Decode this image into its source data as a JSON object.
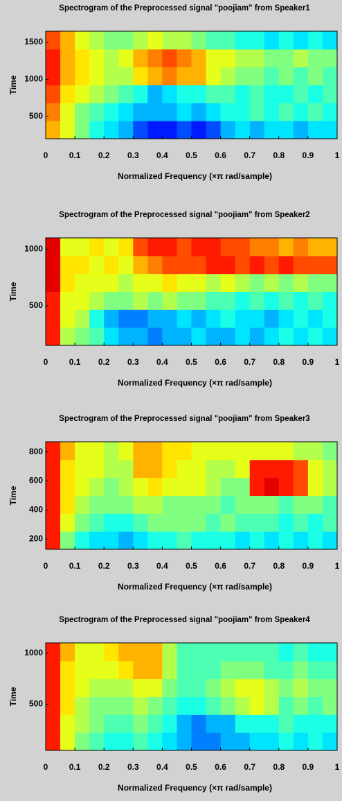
{
  "chart_data": [
    {
      "type": "heatmap",
      "title": "Spectrogram of the Preprocessed signal \"poojiam\" from Speaker1",
      "xlabel": "Normalized Frequency  (×π rad/sample)",
      "ylabel": "Time",
      "xlim": [
        0,
        1
      ],
      "xticks": [
        0,
        0.1,
        0.2,
        0.3,
        0.4,
        0.5,
        0.6,
        0.7,
        0.8,
        0.9,
        1
      ],
      "ylim": [
        200,
        1650
      ],
      "yticks": [
        500,
        1000,
        1500
      ],
      "colormap": "jet",
      "clim": [
        0,
        1
      ],
      "z": [
        [
          0.7,
          0.6,
          0.5,
          0.4,
          0.35,
          0.3,
          0.2,
          0.15,
          0.15,
          0.2,
          0.15,
          0.2,
          0.3,
          0.35,
          0.3,
          0.35,
          0.35,
          0.3,
          0.35,
          0.35
        ],
        [
          0.75,
          0.6,
          0.5,
          0.45,
          0.4,
          0.35,
          0.3,
          0.3,
          0.3,
          0.35,
          0.3,
          0.35,
          0.4,
          0.4,
          0.45,
          0.4,
          0.45,
          0.4,
          0.45,
          0.4
        ],
        [
          0.8,
          0.65,
          0.6,
          0.55,
          0.5,
          0.45,
          0.4,
          0.3,
          0.35,
          0.4,
          0.4,
          0.45,
          0.45,
          0.4,
          0.45,
          0.4,
          0.4,
          0.45,
          0.4,
          0.45
        ],
        [
          0.85,
          0.7,
          0.65,
          0.6,
          0.55,
          0.55,
          0.65,
          0.7,
          0.75,
          0.7,
          0.7,
          0.6,
          0.55,
          0.5,
          0.5,
          0.45,
          0.5,
          0.45,
          0.5,
          0.45
        ],
        [
          0.85,
          0.7,
          0.65,
          0.6,
          0.55,
          0.6,
          0.7,
          0.75,
          0.8,
          0.75,
          0.7,
          0.6,
          0.6,
          0.55,
          0.55,
          0.5,
          0.5,
          0.55,
          0.5,
          0.5
        ],
        [
          0.8,
          0.7,
          0.6,
          0.55,
          0.5,
          0.5,
          0.55,
          0.6,
          0.55,
          0.55,
          0.5,
          0.45,
          0.45,
          0.4,
          0.4,
          0.35,
          0.4,
          0.35,
          0.4,
          0.35
        ]
      ]
    },
    {
      "type": "heatmap",
      "title": "Spectrogram of the Preprocessed signal \"poojiam\" from Speaker2",
      "xlabel": "Normalized Frequency  (×π rad/sample)",
      "ylabel": "Time",
      "xlim": [
        0,
        1
      ],
      "xticks": [
        0,
        0.1,
        0.2,
        0.3,
        0.4,
        0.5,
        0.6,
        0.7,
        0.8,
        0.9,
        1
      ],
      "ylim": [
        150,
        1100
      ],
      "yticks": [
        500,
        1000
      ],
      "colormap": "jet",
      "clim": [
        0,
        1
      ],
      "z": [
        [
          0.85,
          0.55,
          0.5,
          0.45,
          0.35,
          0.3,
          0.3,
          0.25,
          0.3,
          0.3,
          0.35,
          0.3,
          0.3,
          0.35,
          0.3,
          0.35,
          0.4,
          0.35,
          0.4,
          0.35
        ],
        [
          0.85,
          0.6,
          0.55,
          0.4,
          0.3,
          0.25,
          0.25,
          0.3,
          0.3,
          0.35,
          0.3,
          0.35,
          0.4,
          0.35,
          0.35,
          0.3,
          0.35,
          0.4,
          0.35,
          0.4
        ],
        [
          0.85,
          0.6,
          0.6,
          0.55,
          0.5,
          0.5,
          0.55,
          0.5,
          0.55,
          0.5,
          0.5,
          0.45,
          0.45,
          0.4,
          0.45,
          0.4,
          0.45,
          0.4,
          0.45,
          0.4
        ],
        [
          0.9,
          0.65,
          0.6,
          0.6,
          0.6,
          0.55,
          0.6,
          0.6,
          0.65,
          0.6,
          0.6,
          0.55,
          0.6,
          0.55,
          0.5,
          0.55,
          0.5,
          0.55,
          0.5,
          0.5
        ],
        [
          0.9,
          0.65,
          0.65,
          0.6,
          0.65,
          0.6,
          0.7,
          0.75,
          0.8,
          0.8,
          0.8,
          0.85,
          0.85,
          0.8,
          0.85,
          0.8,
          0.85,
          0.8,
          0.8,
          0.8
        ],
        [
          0.9,
          0.6,
          0.6,
          0.65,
          0.6,
          0.65,
          0.8,
          0.85,
          0.85,
          0.8,
          0.85,
          0.85,
          0.8,
          0.8,
          0.75,
          0.75,
          0.7,
          0.75,
          0.7,
          0.7
        ]
      ]
    },
    {
      "type": "heatmap",
      "title": "Spectrogram of the Preprocessed signal \"poojiam\" from Speaker3",
      "xlabel": "Normalized Frequency  (×π rad/sample)",
      "ylabel": "Time",
      "xlim": [
        0,
        1
      ],
      "xticks": [
        0,
        0.1,
        0.2,
        0.3,
        0.4,
        0.5,
        0.6,
        0.7,
        0.8,
        0.9,
        1
      ],
      "ylim": [
        130,
        870
      ],
      "yticks": [
        200,
        400,
        600,
        800
      ],
      "colormap": "jet",
      "clim": [
        0,
        1
      ],
      "z": [
        [
          0.85,
          0.5,
          0.4,
          0.35,
          0.35,
          0.3,
          0.35,
          0.4,
          0.4,
          0.45,
          0.4,
          0.4,
          0.4,
          0.35,
          0.4,
          0.35,
          0.4,
          0.35,
          0.4,
          0.35
        ],
        [
          0.85,
          0.6,
          0.5,
          0.45,
          0.4,
          0.4,
          0.45,
          0.5,
          0.5,
          0.5,
          0.5,
          0.45,
          0.5,
          0.45,
          0.45,
          0.45,
          0.4,
          0.45,
          0.4,
          0.45
        ],
        [
          0.85,
          0.65,
          0.55,
          0.5,
          0.5,
          0.5,
          0.55,
          0.55,
          0.5,
          0.5,
          0.5,
          0.5,
          0.45,
          0.5,
          0.5,
          0.5,
          0.45,
          0.5,
          0.5,
          0.45
        ],
        [
          0.85,
          0.65,
          0.6,
          0.55,
          0.5,
          0.55,
          0.6,
          0.65,
          0.6,
          0.6,
          0.6,
          0.55,
          0.5,
          0.5,
          0.85,
          0.9,
          0.85,
          0.8,
          0.6,
          0.55
        ],
        [
          0.85,
          0.65,
          0.6,
          0.6,
          0.55,
          0.55,
          0.7,
          0.7,
          0.65,
          0.6,
          0.6,
          0.55,
          0.55,
          0.6,
          0.85,
          0.85,
          0.85,
          0.8,
          0.6,
          0.55
        ],
        [
          0.85,
          0.7,
          0.6,
          0.6,
          0.55,
          0.6,
          0.7,
          0.7,
          0.65,
          0.65,
          0.6,
          0.6,
          0.6,
          0.6,
          0.6,
          0.6,
          0.6,
          0.55,
          0.55,
          0.5
        ]
      ]
    },
    {
      "type": "heatmap",
      "title": "Spectrogram of the Preprocessed signal \"poojiam\" from Speaker4",
      "xlabel": "Normalized Frequency  (×π rad/sample)",
      "ylabel": "Time",
      "xlim": [
        0,
        1
      ],
      "xticks": [
        0,
        0.1,
        0.2,
        0.3,
        0.4,
        0.5,
        0.6,
        0.7,
        0.8,
        0.9,
        1
      ],
      "ylim": [
        50,
        1100
      ],
      "yticks": [
        500,
        1000
      ],
      "colormap": "jet",
      "clim": [
        0,
        1
      ],
      "z": [
        [
          0.85,
          0.6,
          0.5,
          0.45,
          0.4,
          0.4,
          0.45,
          0.4,
          0.35,
          0.3,
          0.25,
          0.25,
          0.3,
          0.3,
          0.35,
          0.35,
          0.4,
          0.35,
          0.4,
          0.35
        ],
        [
          0.85,
          0.6,
          0.55,
          0.5,
          0.45,
          0.45,
          0.5,
          0.45,
          0.4,
          0.3,
          0.25,
          0.3,
          0.3,
          0.4,
          0.4,
          0.4,
          0.45,
          0.4,
          0.4,
          0.4
        ],
        [
          0.85,
          0.65,
          0.55,
          0.5,
          0.5,
          0.5,
          0.55,
          0.5,
          0.45,
          0.4,
          0.4,
          0.45,
          0.5,
          0.55,
          0.6,
          0.55,
          0.45,
          0.5,
          0.45,
          0.5
        ],
        [
          0.85,
          0.65,
          0.6,
          0.55,
          0.55,
          0.55,
          0.6,
          0.6,
          0.5,
          0.45,
          0.45,
          0.5,
          0.55,
          0.6,
          0.6,
          0.55,
          0.5,
          0.55,
          0.5,
          0.5
        ],
        [
          0.85,
          0.65,
          0.6,
          0.6,
          0.6,
          0.65,
          0.7,
          0.7,
          0.55,
          0.45,
          0.45,
          0.45,
          0.5,
          0.5,
          0.5,
          0.45,
          0.45,
          0.5,
          0.45,
          0.45
        ],
        [
          0.85,
          0.7,
          0.6,
          0.6,
          0.65,
          0.7,
          0.7,
          0.7,
          0.55,
          0.45,
          0.45,
          0.45,
          0.45,
          0.45,
          0.45,
          0.45,
          0.4,
          0.45,
          0.4,
          0.4
        ]
      ]
    }
  ]
}
